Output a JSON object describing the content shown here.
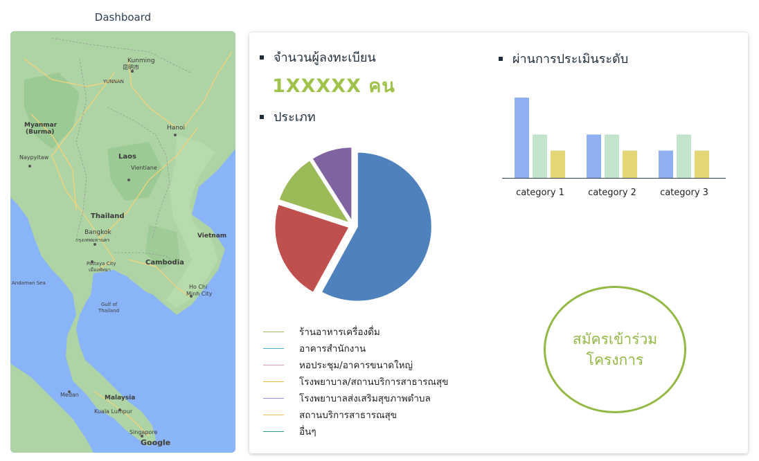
{
  "page": {
    "title": "Dashboard"
  },
  "map": {
    "labels": {
      "kunming": "Kunming",
      "kunming_local": "昆明市",
      "yunnan": "YUNNAN",
      "myanmar": "Myanmar",
      "burma": "(Burma)",
      "naypyitaw": "Naypyitaw",
      "hanoi": "Hanoi",
      "laos": "Laos",
      "vientiane": "Vientiane",
      "thailand": "Thailand",
      "bangkok": "Bangkok",
      "bangkok_local": "กรุงเทพมหานคร",
      "pattaya": "Pattaya City",
      "pattaya_local": "เมืองพัทยา",
      "vietnam": "Vietnam",
      "cambodia": "Cambodia",
      "andaman": "Andaman Sea",
      "gulf": "Gulf of",
      "gulf2": "Thailand",
      "hochiminh": "Ho Chi",
      "hochiminh2": "Minh City",
      "medan": "Medan",
      "malaysia": "Malaysia",
      "kualalumpur": "Kuala Lumpur",
      "singapore": "Singapore",
      "google": "Google"
    },
    "colors": {
      "water": "#8ab4f8",
      "land": "#aed3a4",
      "land_dark": "#8fc48a",
      "roads": "#f3d27a"
    }
  },
  "registrations": {
    "heading": "จำนวนผู้ลงทะเบียน",
    "value": "1XXXXX คน"
  },
  "category_section": {
    "heading": "ประเภท"
  },
  "assessment": {
    "heading": "ผ่านการประเมินระดับ"
  },
  "chart_data": [
    {
      "type": "pie",
      "slices": [
        {
          "value": 58,
          "color": "#4f81bd"
        },
        {
          "value": 22,
          "color": "#c0504d"
        },
        {
          "value": 11,
          "color": "#9bbb59"
        },
        {
          "value": 9,
          "color": "#8064a2"
        }
      ],
      "legend": [
        {
          "label": "ร้านอาหารเครื่องดื่ม",
          "color": "#9bbb59"
        },
        {
          "label": "อาคารสำนักงาน",
          "color": "#4bacc6"
        },
        {
          "label": "หอประชุม/อาคารขนาดใหญ่",
          "color": "#d99bb0"
        },
        {
          "label": "โรงพยาบาล/สถานบริการสาธารณสุข",
          "color": "#e0c240"
        },
        {
          "label": "โรงพยาบาลส่งเสริมสุขภาพตำบล",
          "color": "#9a8fd8"
        },
        {
          "label": "สถานบริการสาธารณสุข",
          "color": "#f0c060"
        },
        {
          "label": "อื่นๆ",
          "color": "#2a9d8f"
        }
      ]
    },
    {
      "type": "bar",
      "categories": [
        "category 1",
        "category 2",
        "category 3"
      ],
      "series": [
        {
          "values": [
            100,
            54,
            34
          ],
          "color": "#8eb0f0"
        },
        {
          "values": [
            54,
            54,
            54
          ],
          "color": "#c3e3cb"
        },
        {
          "values": [
            34,
            34,
            34
          ],
          "color": "#e3d675"
        }
      ],
      "ylim": [
        0,
        100
      ]
    }
  ],
  "join_button": {
    "line1": "สมัครเข้าร่วม",
    "line2": "โครงการ"
  }
}
